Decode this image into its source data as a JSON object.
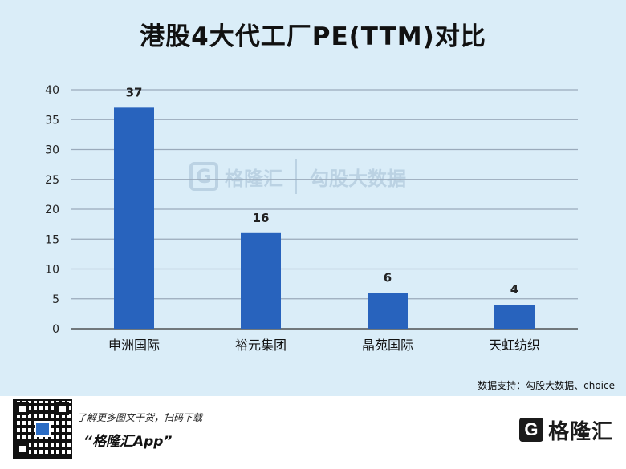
{
  "title": "港股4大代工厂PE(TTM)对比",
  "source": "数据支持：勾股大数据、choice",
  "footer": {
    "download_text": "了解更多图文干货，扫码下载",
    "app_name": "“格隆汇App”",
    "logo_icon": "G",
    "logo_text": "格隆汇"
  },
  "watermark": {
    "icon": "G",
    "name1": "格隆汇",
    "name2": "勾股大数据"
  },
  "colors": {
    "bar": "#2863bd",
    "grid": "#9aaabb",
    "axis": "#333333"
  },
  "chart_data": {
    "type": "bar",
    "categories": [
      "申洲国际",
      "裕元集团",
      "晶苑国际",
      "天虹纺织"
    ],
    "values": [
      37,
      16,
      6,
      4
    ],
    "data_labels": [
      "37",
      "16",
      "6",
      "4"
    ],
    "yticks": [
      "0",
      "5",
      "10",
      "15",
      "20",
      "25",
      "30",
      "35",
      "40"
    ],
    "ylim": [
      0,
      40
    ],
    "grid": true,
    "title": "港股4大代工厂PE(TTM)对比",
    "xlabel": "",
    "ylabel": ""
  }
}
